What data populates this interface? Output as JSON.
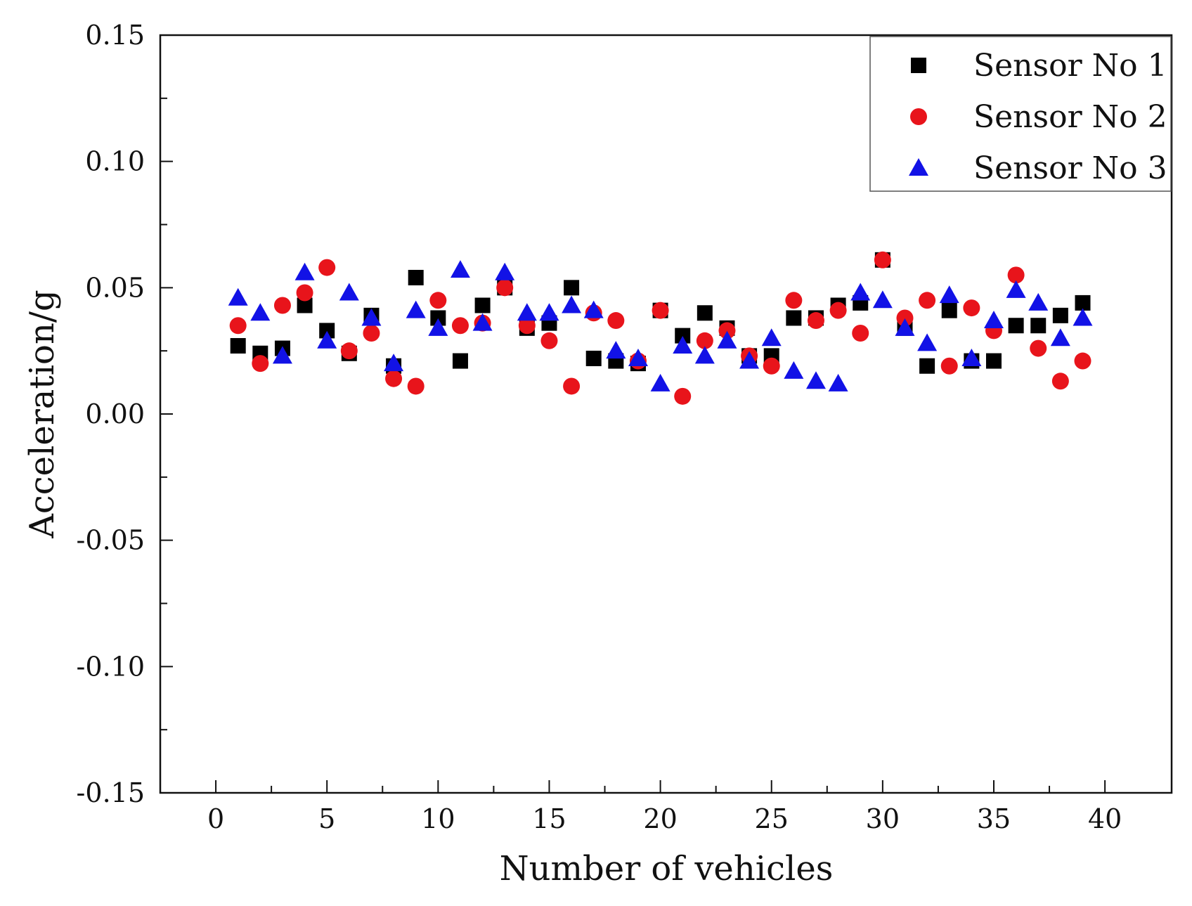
{
  "chart_data": {
    "type": "scatter",
    "title": "",
    "xlabel": "Number of vehicles",
    "ylabel": "Acceleration/g",
    "xlim": [
      -2.5,
      43
    ],
    "ylim": [
      -0.15,
      0.15
    ],
    "x_ticks": [
      0,
      5,
      10,
      15,
      20,
      25,
      30,
      35,
      40
    ],
    "x_tick_labels": [
      "0",
      "5",
      "10",
      "15",
      "20",
      "25",
      "30",
      "35",
      "40"
    ],
    "y_ticks": [
      0.15,
      0.1,
      0.05,
      0.0,
      -0.05,
      -0.1,
      -0.15
    ],
    "y_tick_labels": [
      "0.15",
      "0.10",
      "0.05",
      "0.00",
      "-0.05",
      "-0.10",
      "-0.15"
    ],
    "grid": false,
    "legend_position": "top-right",
    "x": [
      1,
      2,
      3,
      4,
      5,
      6,
      7,
      8,
      9,
      10,
      11,
      12,
      13,
      14,
      15,
      16,
      17,
      18,
      19,
      20,
      21,
      22,
      23,
      24,
      25,
      26,
      27,
      28,
      29,
      30,
      31,
      32,
      33,
      34,
      35,
      36,
      37,
      38,
      39
    ],
    "series": [
      {
        "name": "Sensor No 1",
        "marker": "square",
        "color": "#000000",
        "values": [
          0.027,
          0.024,
          0.026,
          0.043,
          0.033,
          0.024,
          0.039,
          0.019,
          0.054,
          0.038,
          0.021,
          0.043,
          0.05,
          0.034,
          0.036,
          0.05,
          0.022,
          0.021,
          0.02,
          0.041,
          0.031,
          0.04,
          0.034,
          0.023,
          0.023,
          0.038,
          0.038,
          0.043,
          0.044,
          0.061,
          0.034,
          0.019,
          0.041,
          0.021,
          0.021,
          0.035,
          0.035,
          0.039,
          0.044
        ]
      },
      {
        "name": "Sensor No 2",
        "marker": "circle",
        "color": "#e8141b",
        "values": [
          0.035,
          0.02,
          0.043,
          0.048,
          0.058,
          0.025,
          0.032,
          0.014,
          0.011,
          0.045,
          0.035,
          0.036,
          0.05,
          0.035,
          0.029,
          0.011,
          0.04,
          0.037,
          0.021,
          0.041,
          0.007,
          0.029,
          0.033,
          0.023,
          0.019,
          0.045,
          0.037,
          0.041,
          0.032,
          0.061,
          0.038,
          0.045,
          0.019,
          0.042,
          0.033,
          0.055,
          0.026,
          0.013,
          0.021
        ]
      },
      {
        "name": "Sensor No 3",
        "marker": "triangle",
        "color": "#1212e6",
        "values": [
          0.046,
          0.04,
          0.023,
          0.056,
          0.029,
          0.048,
          0.038,
          0.02,
          0.041,
          0.034,
          0.057,
          0.036,
          0.056,
          0.04,
          0.04,
          0.043,
          0.041,
          0.025,
          0.022,
          0.012,
          0.027,
          0.023,
          0.029,
          0.021,
          0.03,
          0.017,
          0.013,
          0.012,
          0.048,
          0.045,
          0.034,
          0.028,
          0.047,
          0.022,
          0.037,
          0.049,
          0.044,
          0.03,
          0.038
        ]
      }
    ]
  }
}
